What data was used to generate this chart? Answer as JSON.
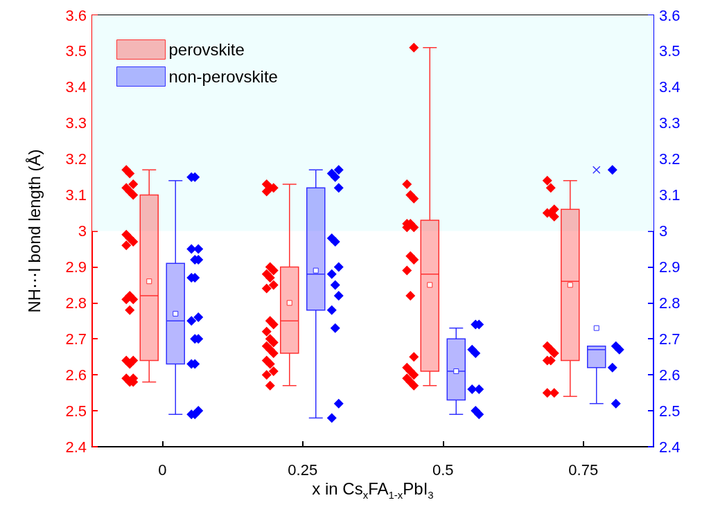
{
  "chart_data": {
    "type": "box",
    "xlabel": "x in Cs$_{x}$FA$_{1-x}$PbI$_{3}$",
    "ylabel": "NH⋯I bond length (Å)",
    "categories": [
      "0",
      "0.25",
      "0.5",
      "0.75"
    ],
    "ylim": [
      2.4,
      3.6
    ],
    "yticks": [
      2.4,
      2.5,
      2.6,
      2.7,
      2.8,
      2.9,
      3,
      3.1,
      3.2,
      3.3,
      3.4,
      3.5,
      3.6
    ],
    "y2lim": [
      2.4,
      3.6
    ],
    "y2ticks": [
      2.4,
      2.5,
      2.6,
      2.7,
      2.8,
      2.9,
      3,
      3.1,
      3.2,
      3.3,
      3.4,
      3.5,
      3.6
    ],
    "legend": "top left",
    "bands": [
      {
        "axis": "y",
        "from": 3,
        "to": 3.6,
        "color": "#effefe"
      }
    ],
    "series": [
      {
        "name": "perovskite",
        "color": "#ff3030",
        "boxes": [
          {
            "low": 2.58,
            "q1": 2.64,
            "median": 2.82,
            "q3": 3.1,
            "high": 3.17,
            "mean": 2.86
          },
          {
            "low": 2.57,
            "q1": 2.66,
            "median": 2.75,
            "q3": 2.9,
            "high": 3.13,
            "mean": 2.8
          },
          {
            "low": 2.57,
            "q1": 2.61,
            "median": 2.88,
            "q3": 3.03,
            "high": 3.51,
            "mean": 2.85
          },
          {
            "low": 2.54,
            "q1": 2.64,
            "median": 2.86,
            "q3": 3.06,
            "high": 3.14,
            "mean": 2.85
          }
        ]
      },
      {
        "name": "non-perovskite",
        "color": "#3030ff",
        "boxes": [
          {
            "low": 2.49,
            "q1": 2.63,
            "median": 2.75,
            "q3": 2.91,
            "high": 3.14,
            "mean": 2.77
          },
          {
            "low": 2.48,
            "q1": 2.78,
            "median": 2.88,
            "q3": 3.12,
            "high": 3.17,
            "mean": 2.89
          },
          {
            "low": 2.49,
            "q1": 2.53,
            "median": 2.61,
            "q3": 2.7,
            "high": 2.73,
            "mean": 2.61
          },
          {
            "low": 2.52,
            "q1": 2.62,
            "median": 2.67,
            "q3": 2.68,
            "high": 2.68,
            "mean": 2.73,
            "outliers": [
              3.17
            ]
          }
        ]
      },
      {
        "type": "scatter",
        "marker": "diamond",
        "color": "#ff0000",
        "x": [
          "0",
          "0",
          "0",
          "0",
          "0",
          "0",
          "0",
          "0",
          "0",
          "0",
          "0",
          "0",
          "0",
          "0",
          "0",
          "0",
          "0",
          "0",
          "0",
          "0",
          "0",
          "0.25",
          "0.25",
          "0.25",
          "0.25",
          "0.25",
          "0.25",
          "0.25",
          "0.25",
          "0.25",
          "0.25",
          "0.25",
          "0.25",
          "0.25",
          "0.25",
          "0.25",
          "0.25",
          "0.25",
          "0.25",
          "0.25",
          "0.25",
          "0.25",
          "0.25",
          "0.25",
          "0.5",
          "0.5",
          "0.5",
          "0.5",
          "0.5",
          "0.5",
          "0.5",
          "0.5",
          "0.5",
          "0.5",
          "0.5",
          "0.5",
          "0.5",
          "0.5",
          "0.5",
          "0.5",
          "0.5",
          "0.5",
          "0.5",
          "0.75",
          "0.75",
          "0.75",
          "0.75",
          "0.75",
          "0.75",
          "0.75",
          "0.75",
          "0.75",
          "0.75",
          "0.75",
          "0.75",
          "0.75"
        ],
        "values": [
          3.17,
          3.16,
          3.13,
          3.12,
          3.11,
          3.1,
          2.99,
          2.98,
          2.97,
          2.96,
          2.82,
          2.81,
          2.81,
          2.78,
          2.64,
          2.64,
          2.63,
          2.59,
          2.59,
          2.58,
          2.58,
          3.13,
          3.12,
          3.12,
          3.11,
          2.9,
          2.89,
          2.88,
          2.87,
          2.85,
          2.84,
          2.75,
          2.74,
          2.72,
          2.7,
          2.69,
          2.68,
          2.67,
          2.66,
          2.64,
          2.63,
          2.61,
          2.6,
          2.57,
          3.51,
          3.13,
          3.1,
          3.09,
          3.02,
          3.02,
          3.01,
          3.01,
          2.93,
          2.92,
          2.89,
          2.82,
          2.65,
          2.62,
          2.61,
          2.6,
          2.59,
          2.58,
          2.57,
          3.14,
          3.12,
          3.06,
          3.05,
          3.05,
          3.04,
          2.68,
          2.67,
          2.66,
          2.64,
          2.64,
          2.55,
          2.55
        ]
      },
      {
        "type": "scatter",
        "marker": "diamond",
        "color": "#0000ff",
        "x": [
          "0",
          "0",
          "0",
          "0",
          "0",
          "0",
          "0",
          "0",
          "0",
          "0",
          "0",
          "0",
          "0",
          "0",
          "0",
          "0",
          "0",
          "0.25",
          "0.25",
          "0.25",
          "0.25",
          "0.25",
          "0.25",
          "0.25",
          "0.25",
          "0.25",
          "0.25",
          "0.25",
          "0.25",
          "0.25",
          "0.25",
          "0.5",
          "0.5",
          "0.5",
          "0.5",
          "0.5",
          "0.5",
          "0.5",
          "0.5",
          "0.75",
          "0.75",
          "0.75",
          "0.75",
          "0.75"
        ],
        "values": [
          3.15,
          3.15,
          2.95,
          2.95,
          2.92,
          2.92,
          2.87,
          2.87,
          2.76,
          2.75,
          2.7,
          2.7,
          2.63,
          2.63,
          2.5,
          2.49,
          2.49,
          3.17,
          3.16,
          3.15,
          3.12,
          2.98,
          2.97,
          2.9,
          2.88,
          2.85,
          2.82,
          2.78,
          2.73,
          2.52,
          2.48,
          2.74,
          2.74,
          2.67,
          2.66,
          2.56,
          2.56,
          2.5,
          2.49,
          3.17,
          2.68,
          2.67,
          2.62,
          2.52
        ]
      }
    ]
  }
}
